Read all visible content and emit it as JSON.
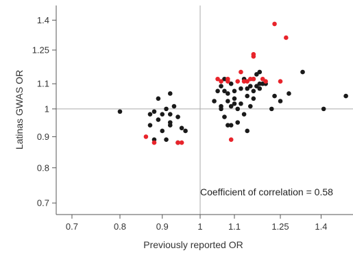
{
  "chart_data": {
    "type": "scatter",
    "xlabel": "Previously reported OR",
    "ylabel": "Latinas GWAS OR",
    "annotation": "Coefficient of correlation = 0.58",
    "x_scale": "log",
    "y_scale": "log",
    "xlim": [
      0.67,
      1.53
    ],
    "ylim": [
      0.67,
      1.48
    ],
    "x_ticks": [
      0.7,
      0.8,
      0.9,
      1,
      1.1,
      1.25,
      1.4
    ],
    "x_tick_labels": [
      "0.7",
      "0.8",
      "0.9",
      "1",
      "1.1",
      "1.25",
      "1.4"
    ],
    "y_ticks": [
      0.7,
      0.8,
      0.9,
      1,
      1.1,
      1.25,
      1.4
    ],
    "y_tick_labels": [
      "0.7",
      "0.8",
      "0.9",
      "1",
      "1.1",
      "1.25",
      "1.4"
    ],
    "reference_lines": {
      "x": 1,
      "y": 1
    },
    "colors": {
      "black_points": "#1a1a1a",
      "red_points": "#e8242b",
      "reference_line": "#aaaaaa",
      "axis": "#555555"
    },
    "series": [
      {
        "color": "black",
        "points": [
          [
            0.8,
            0.99
          ],
          [
            0.87,
            0.94
          ],
          [
            0.87,
            0.98
          ],
          [
            0.88,
            0.89
          ],
          [
            0.88,
            0.99
          ],
          [
            0.89,
            1.04
          ],
          [
            0.89,
            0.96
          ],
          [
            0.9,
            0.92
          ],
          [
            0.9,
            0.98
          ],
          [
            0.91,
            0.89
          ],
          [
            0.91,
            1.0
          ],
          [
            0.92,
            0.94
          ],
          [
            0.92,
            0.95
          ],
          [
            0.92,
            0.98
          ],
          [
            0.92,
            1.06
          ],
          [
            0.93,
            1.01
          ],
          [
            0.94,
            0.97
          ],
          [
            0.94,
            0.88
          ],
          [
            0.95,
            0.93
          ],
          [
            0.96,
            0.92
          ],
          [
            1.04,
            1.03
          ],
          [
            1.05,
            1.07
          ],
          [
            1.06,
            1.0
          ],
          [
            1.06,
            1.01
          ],
          [
            1.06,
            1.09
          ],
          [
            1.07,
            0.97
          ],
          [
            1.07,
            1.07
          ],
          [
            1.07,
            1.12
          ],
          [
            1.08,
            1.03
          ],
          [
            1.08,
            1.06
          ],
          [
            1.08,
            0.94
          ],
          [
            1.09,
            1.01
          ],
          [
            1.09,
            1.1
          ],
          [
            1.09,
            0.94
          ],
          [
            1.1,
            1.04
          ],
          [
            1.1,
            1.02
          ],
          [
            1.1,
            1.07
          ],
          [
            1.11,
            1.0
          ],
          [
            1.11,
            0.95
          ],
          [
            1.12,
            1.08
          ],
          [
            1.12,
            1.02
          ],
          [
            1.13,
            0.98
          ],
          [
            1.13,
            1.12
          ],
          [
            1.14,
            1.08
          ],
          [
            1.14,
            0.92
          ],
          [
            1.14,
            1.05
          ],
          [
            1.15,
            1.09
          ],
          [
            1.15,
            1.01
          ],
          [
            1.16,
            1.07
          ],
          [
            1.16,
            1.04
          ],
          [
            1.16,
            1.12
          ],
          [
            1.17,
            1.09
          ],
          [
            1.17,
            1.14
          ],
          [
            1.18,
            1.1
          ],
          [
            1.18,
            1.15
          ],
          [
            1.18,
            1.08
          ],
          [
            1.19,
            1.1
          ],
          [
            1.2,
            1.1
          ],
          [
            1.22,
            1.0
          ],
          [
            1.23,
            1.05
          ],
          [
            1.25,
            1.03
          ],
          [
            1.28,
            1.06
          ],
          [
            1.33,
            1.15
          ],
          [
            1.41,
            1.0
          ],
          [
            1.5,
            1.05
          ]
        ]
      },
      {
        "color": "red",
        "points": [
          [
            0.86,
            0.9
          ],
          [
            0.88,
            0.88
          ],
          [
            0.94,
            0.88
          ],
          [
            0.95,
            0.88
          ],
          [
            1.05,
            1.12
          ],
          [
            1.06,
            1.11
          ],
          [
            1.08,
            1.12
          ],
          [
            1.08,
            1.11
          ],
          [
            1.09,
            0.89
          ],
          [
            1.11,
            1.11
          ],
          [
            1.12,
            1.15
          ],
          [
            1.13,
            1.11
          ],
          [
            1.14,
            1.11
          ],
          [
            1.15,
            1.12
          ],
          [
            1.16,
            1.12
          ],
          [
            1.16,
            1.22
          ],
          [
            1.16,
            1.23
          ],
          [
            1.19,
            1.12
          ],
          [
            1.2,
            1.11
          ],
          [
            1.25,
            1.11
          ],
          [
            1.23,
            1.38
          ],
          [
            1.27,
            1.31
          ]
        ]
      }
    ]
  }
}
